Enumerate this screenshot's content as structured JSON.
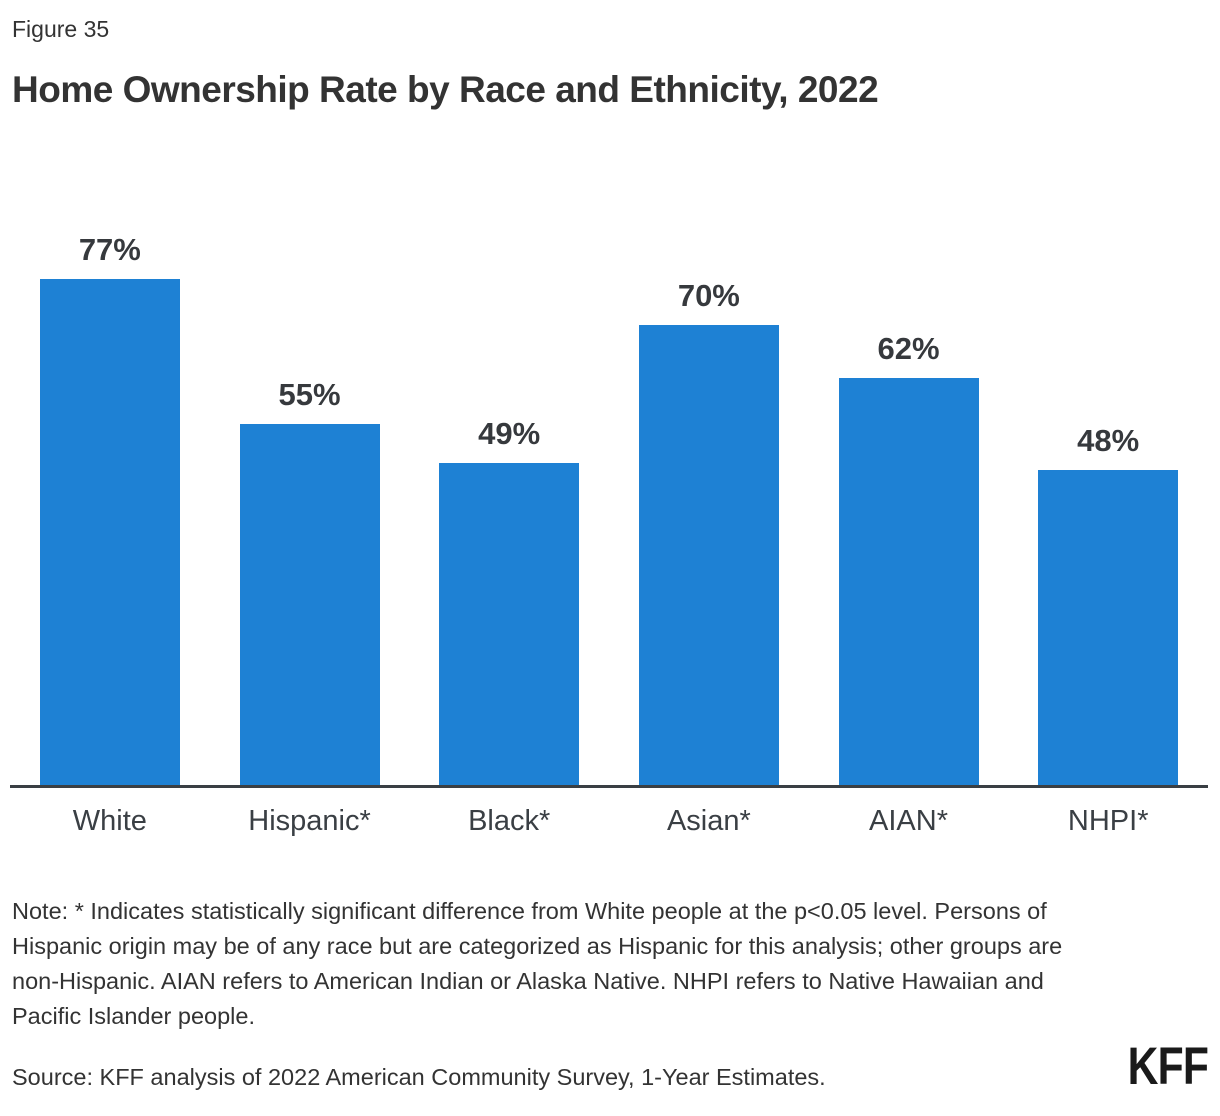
{
  "figure_label": "Figure 35",
  "title": "Home Ownership Rate by Race and Ethnicity, 2022",
  "chart_data": {
    "type": "bar",
    "categories": [
      "White",
      "Hispanic*",
      "Black*",
      "Asian*",
      "AIAN*",
      "NHPI*"
    ],
    "values": [
      77,
      55,
      49,
      70,
      62,
      48
    ],
    "value_labels": [
      "77%",
      "55%",
      "49%",
      "70%",
      "62%",
      "48%"
    ],
    "title": "Home Ownership Rate by Race and Ethnicity, 2022",
    "xlabel": "",
    "ylabel": "",
    "ylim": [
      0,
      87
    ],
    "grid": false,
    "legend": false,
    "bar_color": "#1E81D4",
    "axis_color": "#3a3f44"
  },
  "note": "Note: * Indicates statistically significant difference from White people at the p<0.05 level. Persons of Hispanic origin may be of any race but are categorized as Hispanic for this analysis; other groups are non-Hispanic. AIAN refers to American Indian or Alaska Native. NHPI refers to Native Hawaiian and Pacific Islander people.",
  "source": "Source: KFF analysis of 2022 American Community Survey, 1-Year Estimates.",
  "logo_text": "KFF",
  "colors": {
    "bar": "#1E81D4",
    "text": "#333333",
    "axis": "#3a3f44"
  }
}
